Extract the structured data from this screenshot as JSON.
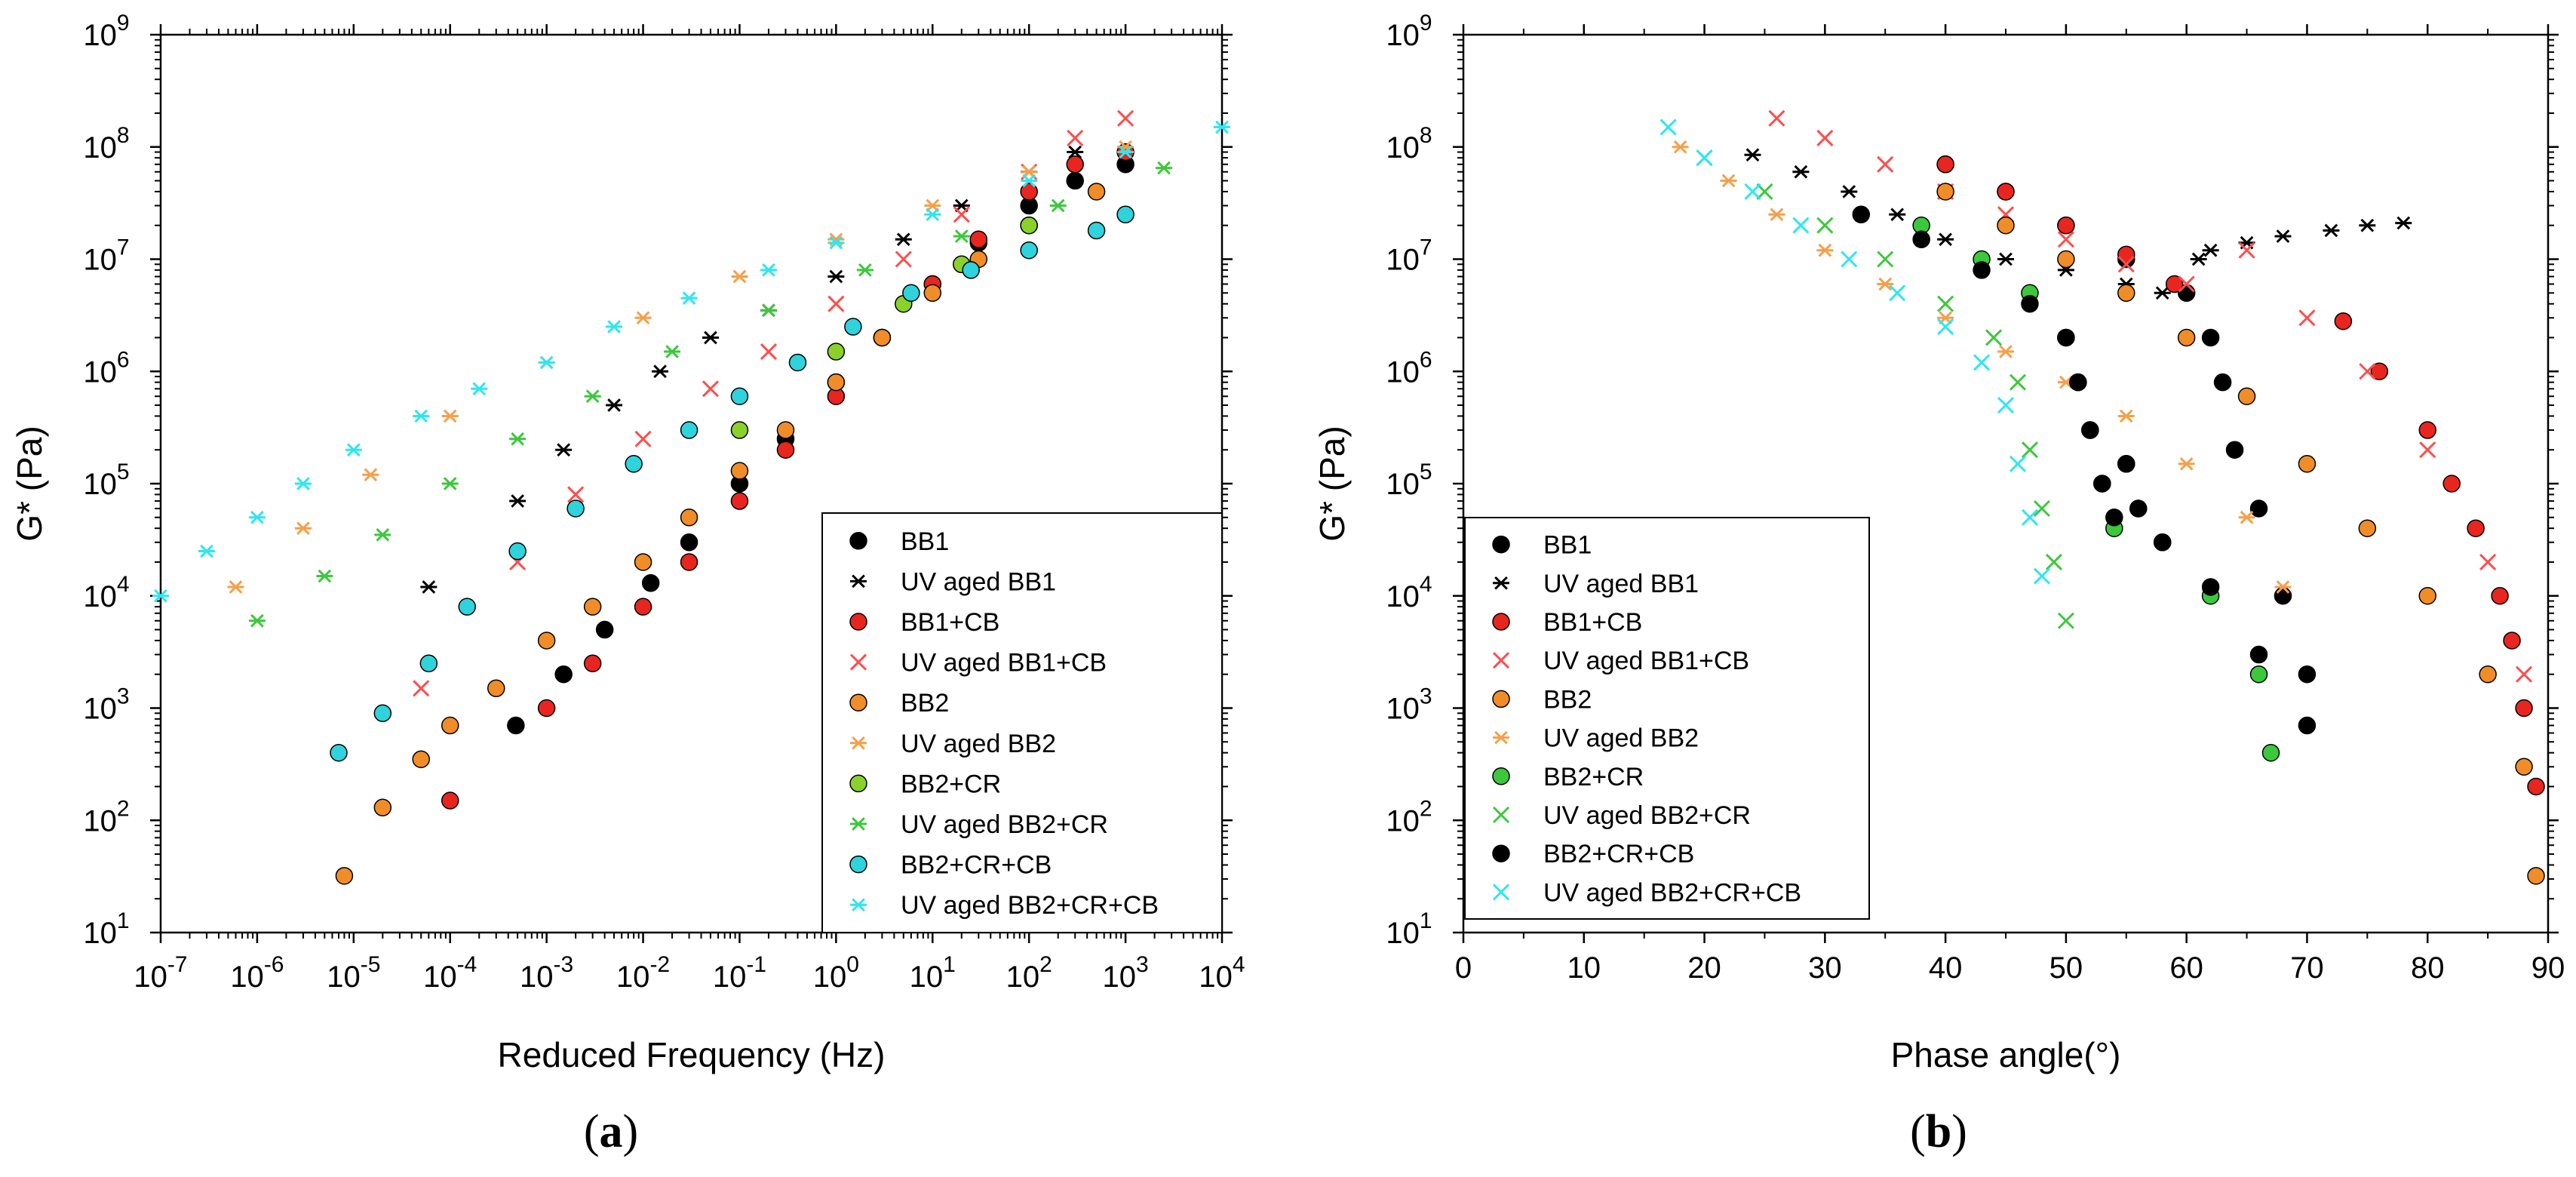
{
  "chart_data": [
    {
      "panel": "a",
      "panel_label": {
        "open": "(",
        "letter": "a",
        "close": ")"
      },
      "type": "scatter",
      "xlabel": "Reduced Frequency (Hz)",
      "ylabel": "G* (Pa)",
      "x_scale": "log",
      "y_scale": "log",
      "xlim": [
        1e-07,
        10000.0
      ],
      "ylim": [
        10,
        1000000000.0
      ],
      "x_tick_exponents": [
        -7,
        -6,
        -5,
        -4,
        -3,
        -2,
        -1,
        0,
        1,
        2,
        3,
        4
      ],
      "y_tick_exponents": [
        1,
        2,
        3,
        4,
        5,
        6,
        7,
        8,
        9
      ],
      "grid": false,
      "legend_position": "lower-right",
      "series": [
        {
          "name": "BB1",
          "marker": "circle",
          "color": "#000000",
          "x": [
            0.00048,
            0.0015,
            0.004,
            0.012,
            0.03,
            0.1,
            0.3,
            1,
            3,
            10,
            30,
            100,
            300,
            1000
          ],
          "y": [
            700,
            2000,
            5000,
            13000.0,
            30000.0,
            100000.0,
            250000.0,
            800000.0,
            2000000.0,
            6000000.0,
            14000000.0,
            30000000.0,
            50000000.0,
            70000000.0
          ]
        },
        {
          "name": "UV aged BB1",
          "marker": "asterisk",
          "color": "#000000",
          "x": [
            6e-05,
            0.0005,
            0.0015,
            0.005,
            0.015,
            0.05,
            0.2,
            1,
            5,
            20,
            100,
            300
          ],
          "y": [
            12000.0,
            70000.0,
            200000.0,
            500000.0,
            1000000.0,
            2000000.0,
            3500000.0,
            7000000.0,
            15000000.0,
            30000000.0,
            60000000.0,
            90000000.0
          ]
        },
        {
          "name": "BB1+CB",
          "marker": "circle",
          "color": "#e8261f",
          "x": [
            0.0001,
            0.001,
            0.003,
            0.01,
            0.03,
            0.1,
            0.3,
            1,
            3,
            10,
            30,
            100,
            300,
            1000
          ],
          "y": [
            150,
            1000,
            2500,
            8000,
            20000.0,
            70000.0,
            200000.0,
            600000.0,
            2000000.0,
            6000000.0,
            15000000.0,
            40000000.0,
            70000000.0,
            90000000.0
          ]
        },
        {
          "name": "UV aged BB1+CB",
          "marker": "x",
          "color": "#ff4d4d",
          "x": [
            5e-05,
            0.0005,
            0.002,
            0.01,
            0.05,
            0.2,
            1,
            5,
            20,
            100,
            300,
            1000
          ],
          "y": [
            1500,
            20000.0,
            80000.0,
            250000.0,
            700000.0,
            1500000.0,
            4000000.0,
            10000000.0,
            25000000.0,
            60000000.0,
            120000000.0,
            180000000.0
          ]
        },
        {
          "name": "BB2",
          "marker": "circle",
          "color": "#f08d28",
          "x": [
            8e-06,
            2e-05,
            5e-05,
            0.0001,
            0.0003,
            0.001,
            0.003,
            0.01,
            0.03,
            0.1,
            0.3,
            1,
            3,
            10,
            30,
            100,
            500
          ],
          "y": [
            32,
            130,
            350,
            700,
            1500,
            4000,
            8000,
            20000.0,
            50000.0,
            130000.0,
            300000.0,
            800000.0,
            2000000.0,
            5000000.0,
            10000000.0,
            20000000.0,
            40000000.0
          ]
        },
        {
          "name": "UV aged BB2",
          "marker": "asterisk",
          "color": "#f5a04a",
          "x": [
            6e-07,
            3e-06,
            1.5e-05,
            0.0001,
            0.001,
            0.01,
            0.1,
            1,
            10,
            100,
            1000
          ],
          "y": [
            12000.0,
            40000.0,
            120000.0,
            400000.0,
            1200000.0,
            3000000.0,
            7000000.0,
            15000000.0,
            30000000.0,
            60000000.0,
            100000000.0
          ]
        },
        {
          "name": "BB2+CR",
          "marker": "circle",
          "color": "#8ad12a",
          "x": [
            0.1,
            1,
            5,
            20,
            100
          ],
          "y": [
            300000.0,
            1500000.0,
            4000000.0,
            9000000.0,
            20000000.0
          ]
        },
        {
          "name": "UV aged BB2+CR",
          "marker": "asterisk",
          "color": "#3cc83c",
          "x": [
            1e-06,
            5e-06,
            2e-05,
            0.0001,
            0.0005,
            0.003,
            0.02,
            0.2,
            2,
            20,
            200,
            2500
          ],
          "y": [
            6000,
            15000.0,
            35000.0,
            100000.0,
            250000.0,
            600000.0,
            1500000.0,
            3500000.0,
            8000000.0,
            16000000.0,
            30000000.0,
            65000000.0
          ]
        },
        {
          "name": "BB2+CR+CB",
          "marker": "circle",
          "color": "#2fd3db",
          "x": [
            7e-06,
            2e-05,
            6e-05,
            0.00015,
            0.0005,
            0.002,
            0.008,
            0.03,
            0.1,
            0.4,
            1.5,
            6,
            25,
            100,
            500,
            1000
          ],
          "y": [
            400,
            900,
            2500,
            8000,
            25000.0,
            60000.0,
            150000.0,
            300000.0,
            600000.0,
            1200000.0,
            2500000.0,
            5000000.0,
            8000000.0,
            12000000.0,
            18000000.0,
            25000000.0
          ]
        },
        {
          "name": "UV aged BB2+CR+CB",
          "marker": "asterisk",
          "color": "#2fe6f0",
          "x": [
            1e-07,
            3e-07,
            1e-06,
            3e-06,
            1e-05,
            5e-05,
            0.0002,
            0.001,
            0.005,
            0.03,
            0.2,
            1,
            10,
            100,
            1000,
            10000.0
          ],
          "y": [
            10000.0,
            25000.0,
            50000.0,
            100000.0,
            200000.0,
            400000.0,
            700000.0,
            1200000.0,
            2500000.0,
            4500000.0,
            8000000.0,
            14000000.0,
            25000000.0,
            50000000.0,
            90000000.0,
            150000000.0
          ]
        }
      ]
    },
    {
      "panel": "b",
      "panel_label": {
        "open": "(",
        "letter": "b",
        "close": ")"
      },
      "type": "scatter",
      "xlabel": "Phase angle(°)",
      "ylabel": "G* (Pa)",
      "x_scale": "linear",
      "y_scale": "log",
      "xlim": [
        0,
        90
      ],
      "ylim": [
        10,
        1000000000.0
      ],
      "x_ticks": [
        0,
        10,
        20,
        30,
        40,
        50,
        60,
        70,
        80,
        90
      ],
      "y_tick_exponents": [
        1,
        2,
        3,
        4,
        5,
        6,
        7,
        8,
        9
      ],
      "grid": false,
      "legend_position": "lower-left",
      "series": [
        {
          "name": "BB1",
          "marker": "circle",
          "color": "#000000",
          "x": [
            40,
            45,
            50,
            55,
            60,
            62,
            63,
            64,
            66,
            68,
            70
          ],
          "y": [
            70000000.0,
            40000000.0,
            20000000.0,
            10000000.0,
            5000000.0,
            2000000.0,
            800000.0,
            200000.0,
            60000.0,
            10000.0,
            2000
          ]
        },
        {
          "name": "UV aged BB1",
          "marker": "asterisk",
          "color": "#000000",
          "x": [
            24,
            28,
            32,
            36,
            40,
            45,
            50,
            55,
            58,
            60,
            61,
            62,
            65,
            68,
            72,
            75,
            78
          ],
          "y": [
            85000000.0,
            60000000.0,
            40000000.0,
            25000000.0,
            15000000.0,
            10000000.0,
            8000000.0,
            6000000.0,
            5000000.0,
            5000000.0,
            10000000.0,
            12000000.0,
            14000000.0,
            16000000.0,
            18000000.0,
            20000000.0,
            21000000.0
          ]
        },
        {
          "name": "BB1+CB",
          "marker": "circle",
          "color": "#e8261f",
          "x": [
            40,
            45,
            50,
            55,
            59,
            73,
            76,
            80,
            82,
            84,
            86,
            87,
            88,
            89
          ],
          "y": [
            70000000.0,
            40000000.0,
            20000000.0,
            11000000.0,
            6000000.0,
            2800000.0,
            1000000.0,
            300000.0,
            100000.0,
            40000.0,
            10000.0,
            4000,
            1000,
            200
          ]
        },
        {
          "name": "UV aged BB1+CB",
          "marker": "x",
          "color": "#ff4d4d",
          "x": [
            26,
            30,
            35,
            40,
            45,
            50,
            55,
            60,
            65,
            70,
            75,
            80,
            85,
            88
          ],
          "y": [
            180000000.0,
            120000000.0,
            70000000.0,
            40000000.0,
            25000000.0,
            15000000.0,
            9000000.0,
            6000000.0,
            12000000.0,
            3000000.0,
            1000000.0,
            200000.0,
            20000.0,
            2000
          ]
        },
        {
          "name": "BB2",
          "marker": "circle",
          "color": "#f08d28",
          "x": [
            40,
            45,
            50,
            55,
            60,
            65,
            70,
            75,
            80,
            85,
            88,
            89
          ],
          "y": [
            40000000.0,
            20000000.0,
            10000000.0,
            5000000.0,
            2000000.0,
            600000.0,
            150000.0,
            40000.0,
            10000.0,
            2000,
            300,
            32
          ]
        },
        {
          "name": "UV aged BB2",
          "marker": "asterisk",
          "color": "#f5a04a",
          "x": [
            18,
            22,
            26,
            30,
            35,
            40,
            45,
            50,
            55,
            60,
            65,
            68
          ],
          "y": [
            100000000.0,
            50000000.0,
            25000000.0,
            12000000.0,
            6000000.0,
            3000000.0,
            1500000.0,
            800000.0,
            400000.0,
            150000.0,
            50000.0,
            12000.0
          ]
        },
        {
          "name": "BB2+CR",
          "marker": "circle",
          "color": "#3cc83c",
          "x": [
            38,
            43,
            47,
            50,
            51,
            52,
            53,
            54,
            55,
            56,
            58,
            62,
            66,
            67
          ],
          "y": [
            20000000.0,
            10000000.0,
            5000000.0,
            2000000.0,
            800000.0,
            300000.0,
            100000.0,
            40000.0,
            150000.0,
            60000.0,
            30000.0,
            10000.0,
            2000,
            400
          ]
        },
        {
          "name": "UV aged BB2+CR",
          "marker": "x",
          "color": "#3cc83c",
          "x": [
            20,
            25,
            30,
            35,
            40,
            44,
            46,
            47,
            48,
            49,
            50
          ],
          "y": [
            80000000.0,
            40000000.0,
            20000000.0,
            10000000.0,
            4000000.0,
            2000000.0,
            800000.0,
            200000.0,
            60000.0,
            20000.0,
            6000
          ]
        },
        {
          "name": "BB2+CR+CB",
          "marker": "circle",
          "color": "#000000",
          "x": [
            33,
            38,
            43,
            47,
            50,
            51,
            52,
            53,
            54,
            55,
            56,
            58,
            62,
            66,
            70
          ],
          "y": [
            25000000.0,
            15000000.0,
            8000000.0,
            4000000.0,
            2000000.0,
            800000.0,
            300000.0,
            100000.0,
            50000.0,
            150000.0,
            60000.0,
            30000.0,
            12000.0,
            3000,
            700
          ]
        },
        {
          "name": "UV aged BB2+CR+CB",
          "marker": "x",
          "color": "#2fe6f0",
          "x": [
            17,
            20,
            24,
            28,
            32,
            36,
            40,
            43,
            45,
            46,
            47,
            48
          ],
          "y": [
            150000000.0,
            80000000.0,
            40000000.0,
            20000000.0,
            10000000.0,
            5000000.0,
            2500000.0,
            1200000.0,
            500000.0,
            150000.0,
            50000.0,
            15000.0
          ]
        }
      ]
    }
  ]
}
